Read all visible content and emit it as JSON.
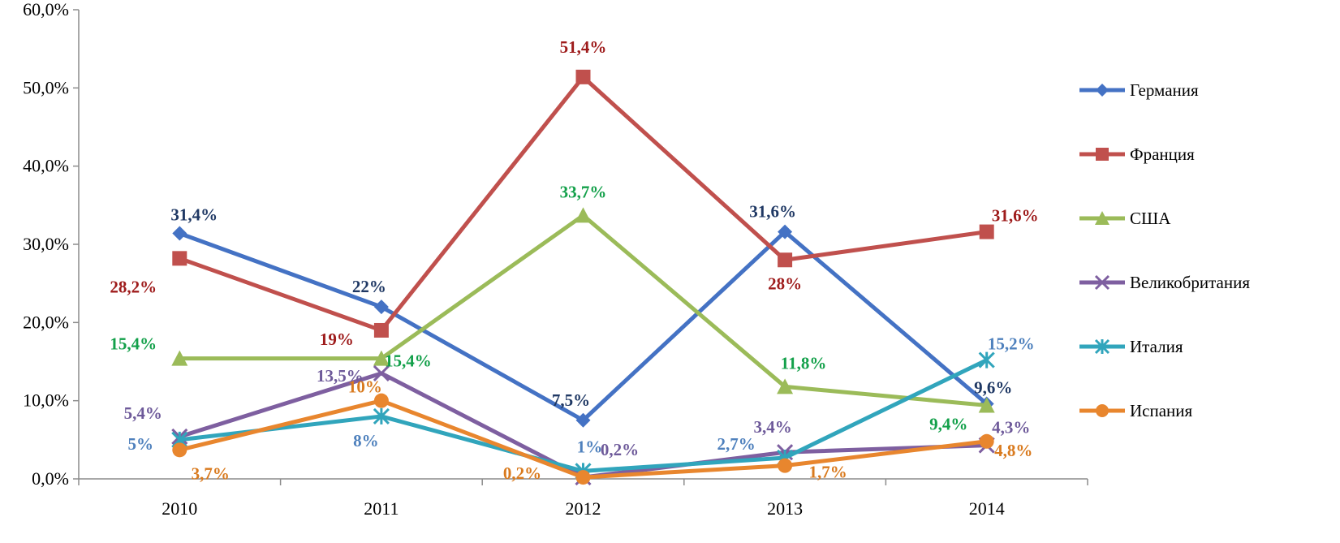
{
  "chart_data": {
    "type": "line",
    "title": "",
    "xlabel": "",
    "ylabel": "",
    "categories": [
      "2010",
      "2011",
      "2012",
      "2013",
      "2014"
    ],
    "ylim": [
      0,
      60
    ],
    "yticks": [
      "0,0%",
      "10,0%",
      "20,0%",
      "30,0%",
      "40,0%",
      "50,0%",
      "60,0%"
    ],
    "grid": false,
    "legend_position": "right",
    "series": [
      {
        "name": "Германия",
        "values": [
          31.4,
          22,
          7.5,
          31.6,
          9.6
        ],
        "labels": [
          "31,4%",
          "22%",
          "7,5%",
          "31,6%",
          "9,6%"
        ],
        "color": "#4472C4",
        "label_color": "#1F3864",
        "marker": "diamond"
      },
      {
        "name": "Франция",
        "values": [
          28.2,
          19,
          51.4,
          28,
          31.6
        ],
        "labels": [
          "28,2%",
          "19%",
          "51,4%",
          "28%",
          "31,6%"
        ],
        "color": "#C0504D",
        "label_color": "#9E1B1B",
        "marker": "square"
      },
      {
        "name": "США",
        "values": [
          15.4,
          15.4,
          33.7,
          11.8,
          9.4
        ],
        "labels": [
          "15,4%",
          "15,4%",
          "33,7%",
          "11,8%",
          "9,4%"
        ],
        "color": "#9BBB59",
        "label_color": "#13A04A",
        "marker": "triangle"
      },
      {
        "name": "Великобритания",
        "values": [
          5.4,
          13.5,
          0.2,
          3.4,
          4.3
        ],
        "labels": [
          "5,4%",
          "13,5%",
          "0,2%",
          "3,4%",
          "4,3%"
        ],
        "color": "#7E5FA0",
        "label_color": "#6E5A9A",
        "marker": "x"
      },
      {
        "name": "Италия",
        "values": [
          5,
          8,
          1,
          2.7,
          15.2
        ],
        "labels": [
          "5%",
          "8%",
          "1%",
          "2,7%",
          "15,2%"
        ],
        "color": "#31A5BC",
        "label_color": "#4F81BD",
        "marker": "star"
      },
      {
        "name": "Испания",
        "values": [
          3.7,
          10,
          0.2,
          1.7,
          4.8
        ],
        "labels": [
          "3,7%",
          "10%",
          "0,2%",
          "1,7%",
          "4,8%"
        ],
        "color": "#E8862E",
        "label_color": "#D97A1E",
        "marker": "circle"
      }
    ]
  }
}
